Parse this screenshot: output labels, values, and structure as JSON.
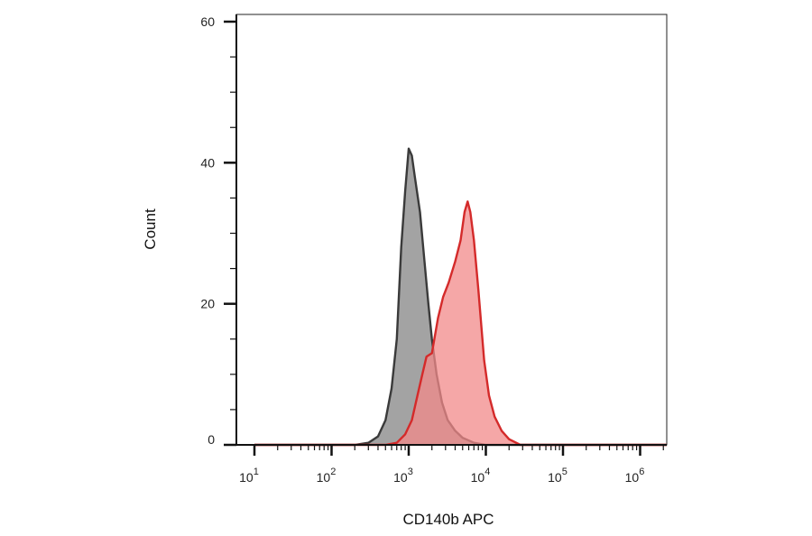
{
  "chart_data": {
    "type": "area",
    "title": "",
    "xlabel": "CD140b APC",
    "ylabel": "Count",
    "x_scale": "log",
    "xlim": [
      10,
      10000000
    ],
    "ylim": [
      0,
      60
    ],
    "x_ticks": [
      {
        "base": "10",
        "exp": "1",
        "value": 10
      },
      {
        "base": "10",
        "exp": "2",
        "value": 100
      },
      {
        "base": "10",
        "exp": "3",
        "value": 1000
      },
      {
        "base": "10",
        "exp": "4",
        "value": 10000
      },
      {
        "base": "10",
        "exp": "5",
        "value": 100000
      },
      {
        "base": "10",
        "exp": "6",
        "value": 1000000
      }
    ],
    "y_ticks": [
      "0",
      "20",
      "40",
      "60"
    ],
    "y_tick_values": [
      0,
      20,
      40,
      60
    ],
    "grid": false,
    "legend": "none",
    "series": [
      {
        "color": "#3a3a3a",
        "fill": "#8c8c8c",
        "fill_opacity": 0.8,
        "points": [
          [
            10,
            0
          ],
          [
            200,
            0
          ],
          [
            300,
            0.3
          ],
          [
            400,
            1.2
          ],
          [
            500,
            3.5
          ],
          [
            600,
            8
          ],
          [
            700,
            15
          ],
          [
            800,
            28
          ],
          [
            900,
            36
          ],
          [
            1000,
            42
          ],
          [
            1100,
            41
          ],
          [
            1200,
            38
          ],
          [
            1400,
            33
          ],
          [
            1600,
            26
          ],
          [
            1800,
            20
          ],
          [
            2000,
            15
          ],
          [
            2300,
            10
          ],
          [
            2700,
            6
          ],
          [
            3200,
            3.5
          ],
          [
            4000,
            2
          ],
          [
            5000,
            1
          ],
          [
            7000,
            0.3
          ],
          [
            10000,
            0
          ],
          [
            10000000,
            0
          ]
        ]
      },
      {
        "color": "#d42a2a",
        "fill": "#f28a8a",
        "fill_opacity": 0.75,
        "points": [
          [
            10,
            0
          ],
          [
            500,
            0
          ],
          [
            700,
            0.3
          ],
          [
            900,
            1.5
          ],
          [
            1100,
            3.5
          ],
          [
            1300,
            7
          ],
          [
            1500,
            10
          ],
          [
            1700,
            12.5
          ],
          [
            2000,
            13
          ],
          [
            2400,
            18
          ],
          [
            2800,
            21
          ],
          [
            3300,
            23
          ],
          [
            4000,
            26
          ],
          [
            4700,
            29
          ],
          [
            5300,
            33
          ],
          [
            5800,
            34.5
          ],
          [
            6300,
            33
          ],
          [
            7000,
            29
          ],
          [
            8000,
            22
          ],
          [
            9500,
            12
          ],
          [
            11000,
            7
          ],
          [
            13000,
            4
          ],
          [
            16000,
            2
          ],
          [
            20000,
            0.8
          ],
          [
            28000,
            0
          ],
          [
            10000000,
            0
          ]
        ]
      }
    ]
  }
}
